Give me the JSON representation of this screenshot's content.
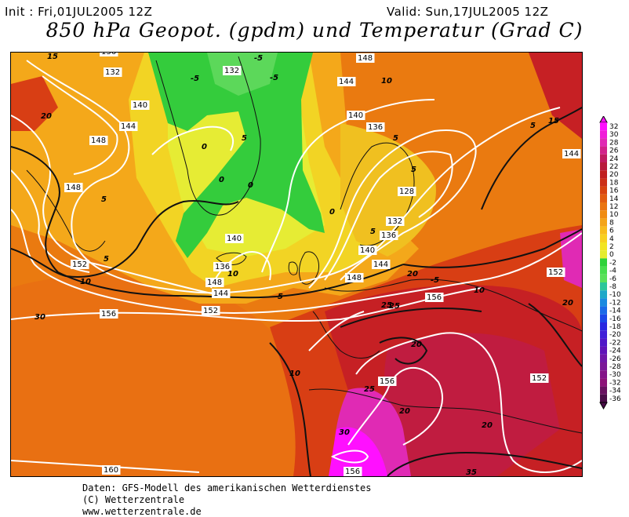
{
  "header": {
    "init": "Init : Fri,01JUL2005 12Z",
    "valid": "Valid: Sun,17JUL2005 12Z",
    "title": "850 hPa Geopot. (gpdm) und Temperatur (Grad C)"
  },
  "legend": {
    "levels": [
      "32",
      "30",
      "28",
      "26",
      "24",
      "22",
      "20",
      "18",
      "16",
      "14",
      "12",
      "10",
      "8",
      "6",
      "4",
      "2",
      "0",
      "-2",
      "-4",
      "-6",
      "-8",
      "-10",
      "-12",
      "-14",
      "-16",
      "-18",
      "-20",
      "-22",
      "-24",
      "-26",
      "-28",
      "-30",
      "-32",
      "-34",
      "-36"
    ],
    "colors": [
      "#ff10ff",
      "#f01cd8",
      "#e02ab4",
      "#d2228a",
      "#c01b60",
      "#b81a3c",
      "#c02020",
      "#cc3018",
      "#d84410",
      "#e25c10",
      "#ea7410",
      "#f08c12",
      "#f4a418",
      "#f8bc1c",
      "#f8d020",
      "#f2e422",
      "#e4ec30",
      "#2ed23a",
      "#48de4e",
      "#5ae05a",
      "#2cc69a",
      "#1ea8c8",
      "#1a8ae0",
      "#1a6ae8",
      "#1a48e8",
      "#2828e0",
      "#4020d8",
      "#5018c8",
      "#6014b8",
      "#7018a8",
      "#7a1898",
      "#841488",
      "#8c1278",
      "#681060",
      "#4a0c48"
    ]
  },
  "map": {
    "geopotential_labels": [
      "132",
      "132",
      "140",
      "144",
      "148",
      "148",
      "152",
      "136",
      "140",
      "144",
      "148",
      "152",
      "156",
      "136",
      "140",
      "144",
      "148",
      "136",
      "128",
      "132",
      "136",
      "140",
      "144",
      "148",
      "152",
      "156",
      "156",
      "152",
      "156",
      "144",
      "160"
    ],
    "temperature_labels": [
      "15",
      "20",
      "-5",
      "-5",
      "-5",
      "0",
      "5",
      "0",
      "0",
      "5",
      "5",
      "0",
      "10",
      "5",
      "5",
      "5",
      "10",
      "5",
      "10",
      "-5",
      "5",
      "10",
      "15",
      "20",
      "25",
      "20",
      "20",
      "20",
      "25",
      "30",
      "20",
      "25",
      "35",
      "10",
      "30"
    ]
  },
  "footer": {
    "line1": "Daten: GFS-Modell des amerikanischen Wetterdienstes",
    "line2": "(C) Wetterzentrale",
    "line3": "www.wetterzentrale.de"
  }
}
